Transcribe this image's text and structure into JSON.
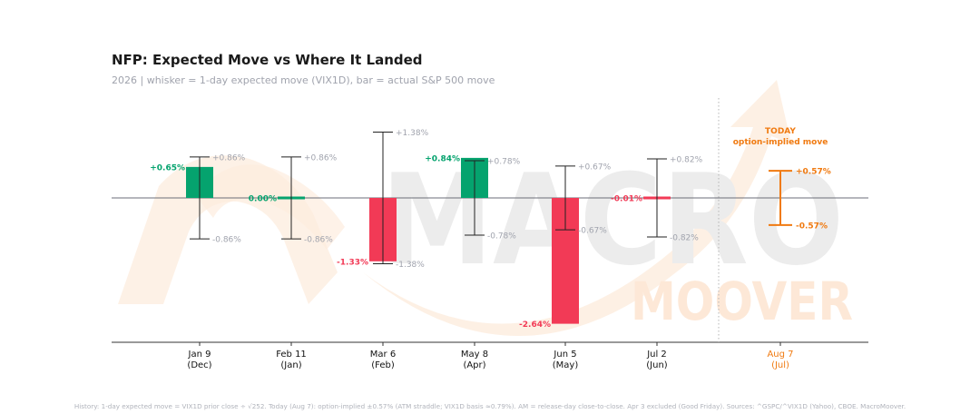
{
  "title": "NFP: Expected Move vs Where It Landed",
  "subtitle": "2026  |  whisker = 1-day expected move (VIX1D), bar = actual S&P 500 move",
  "footnote": "History: 1-day expected move = VIX1D prior close ÷ √252.  Today (Aug 7): option-implied ±0.57% (ATM straddle; VIX1D basis ≈0.79%).  AM = release-day close-to-close.  Apr 3 excluded (Good Friday).  Sources: ^GSPC/^VIX1D (Yahoo), CBOE.  MacroMoover.",
  "watermark": {
    "line1": "MACRO",
    "line2": "MOOVER"
  },
  "colors": {
    "up": "#05a36e",
    "down": "#f23a56",
    "whisker": "#222222",
    "label": "#a0a3ad",
    "today": "#f07a10",
    "axis": "#6b6e78"
  },
  "chart_data": {
    "type": "bar",
    "ylim": [
      -3.1,
      3.4
    ],
    "categories": [
      {
        "date": "Jan 9",
        "month": "(Dec)"
      },
      {
        "date": "Feb 11",
        "month": "(Jan)"
      },
      {
        "date": "Mar 6",
        "month": "(Feb)"
      },
      {
        "date": "May 8",
        "month": "(Apr)"
      },
      {
        "date": "Jun 5",
        "month": "(May)"
      },
      {
        "date": "Jul 2",
        "month": "(Jun)"
      }
    ],
    "actual_move_pct": [
      0.65,
      0.0,
      -1.33,
      0.84,
      -2.64,
      -0.01
    ],
    "actual_labels": [
      "+0.65%",
      "0.00%",
      "-1.33%",
      "+0.84%",
      "-2.64%",
      "-0.01%"
    ],
    "expected_move_pct": [
      0.86,
      0.86,
      1.38,
      0.78,
      0.67,
      0.82
    ],
    "expected_upper_labels": [
      "+0.86%",
      "+0.86%",
      "+1.38%",
      "+0.78%",
      "+0.67%",
      "+0.82%"
    ],
    "expected_lower_labels": [
      "-0.86%",
      "-0.86%",
      "-1.38%",
      "-0.78%",
      "-0.67%",
      "-0.82%"
    ],
    "today": {
      "date": "Aug 7",
      "month": "(Jul)",
      "heading": "TODAY",
      "subheading": "option-implied move",
      "implied_move_pct": 0.57,
      "upper_label": "+0.57%",
      "lower_label": "-0.57%"
    }
  }
}
